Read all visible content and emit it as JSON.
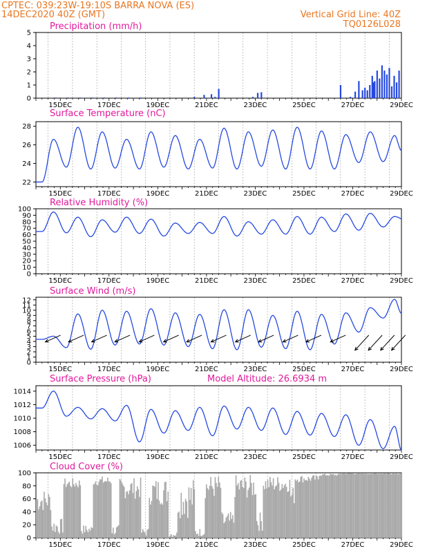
{
  "header": {
    "left_line1": "CPTEC:   039:23W-19:10S  BARRA NOVA (ES)",
    "left_line2": "14DEC2020 40Z (GMT)",
    "right_line1": "Vertical Grid Line: 40Z",
    "right_line2": "TQ0126L028"
  },
  "x_tick_labels": [
    "15DEC",
    "17DEC",
    "19DEC",
    "21DEC",
    "23DEC",
    "25DEC",
    "27DEC",
    "29DEC"
  ],
  "colors": {
    "header": "#e87722",
    "title": "#e0199c",
    "line": "#2448e0",
    "cloud": "#a9a9a9",
    "arrow": "#000000"
  },
  "chart_data": [
    {
      "type": "bar",
      "title": "Precipitation (mm/h)",
      "ylim": [
        0,
        5
      ],
      "yticks": [
        0,
        1,
        2,
        3,
        4,
        5
      ],
      "x": [
        0.8,
        1.3,
        1.8,
        2.3,
        2.8,
        3.3,
        3.8,
        4.3,
        6.5,
        6.9,
        7.2,
        7.35,
        7.5,
        8.9,
        9.1,
        9.25,
        12.5,
        12.9,
        13.1,
        13.25,
        13.4,
        13.5,
        13.6,
        13.7,
        13.8,
        13.85,
        13.9,
        14.0,
        14.1,
        14.2,
        14.3,
        14.4,
        14.5,
        14.6,
        14.7,
        14.8,
        14.9
      ],
      "values": [
        0.05,
        0.05,
        0.05,
        0.05,
        0.05,
        0.05,
        0.05,
        0.05,
        0.1,
        0.25,
        0.3,
        0.1,
        0.7,
        0.1,
        0.4,
        0.45,
        1.0,
        0.1,
        0.5,
        1.3,
        0.6,
        0.8,
        0.6,
        1.0,
        1.7,
        1.2,
        1.3,
        2.1,
        1.5,
        2.5,
        2.1,
        1.8,
        2.3,
        0.9,
        1.7,
        1.2,
        2.1
      ]
    },
    {
      "type": "line",
      "title": "Surface Temperature (nC)",
      "ylim": [
        21.5,
        28.5
      ],
      "yticks": [
        22,
        24,
        26,
        28
      ],
      "peaks": [
        26.6,
        27.9,
        27.4,
        26.6,
        27.4,
        27.0,
        26.6,
        27.8,
        27.4,
        27.6,
        27.9,
        27.5,
        27.1,
        27.4,
        27.0
      ],
      "troughs": [
        22.0,
        23.6,
        23.4,
        23.5,
        23.4,
        23.6,
        23.4,
        23.5,
        23.4,
        23.7,
        23.4,
        23.4,
        23.4,
        24.1,
        24.2
      ],
      "last": 25.4
    },
    {
      "type": "line",
      "title": "Relative Humidity (%)",
      "ylim": [
        0,
        100
      ],
      "yticks": [
        0,
        10,
        20,
        30,
        40,
        50,
        60,
        70,
        80,
        90,
        100
      ],
      "peaks": [
        95,
        87,
        83,
        87,
        84,
        78,
        79,
        88,
        80,
        83,
        88,
        87,
        92,
        93,
        88,
        84
      ],
      "troughs": [
        65,
        63,
        57,
        64,
        62,
        58,
        62,
        62,
        58,
        61,
        61,
        61,
        65,
        67,
        72,
        81
      ],
      "last": 84
    },
    {
      "type": "line",
      "title": "Surface Wind (m/s)",
      "ylim": [
        0,
        12.5
      ],
      "yticks": [
        0,
        1,
        2,
        3,
        4,
        5,
        6,
        7,
        8,
        9,
        10,
        11,
        12
      ],
      "peaks": [
        5.0,
        9.3,
        10.0,
        9.8,
        10.3,
        9.5,
        9.2,
        10.1,
        10.1,
        9.0,
        9.8,
        9.2,
        9.5,
        10.5,
        12.1
      ],
      "troughs": [
        4.4,
        2.8,
        2.5,
        3.3,
        3.5,
        3.3,
        3.0,
        2.6,
        2.4,
        2.9,
        2.6,
        2.4,
        3.5,
        5.8,
        8.5
      ],
      "last": 9.4,
      "wind_arrows_x": [
        0.5,
        1.45,
        2.4,
        3.35,
        4.35,
        5.35,
        6.3,
        7.3,
        8.3,
        9.25,
        10.25,
        11.2,
        12.2,
        13.15,
        13.7,
        14.2,
        14.65
      ]
    },
    {
      "type": "line",
      "title": "Surface Pressure (hPa)",
      "annotation": "Model Altitude: 26.6934 m",
      "ylim": [
        1005.3,
        1014.8
      ],
      "yticks": [
        1006,
        1008,
        1010,
        1012,
        1014
      ],
      "peaks": [
        1014.0,
        1011.6,
        1011.4,
        1011.9,
        1011.3,
        1011.1,
        1011.6,
        1011.8,
        1011.6,
        1011.5,
        1011.0,
        1010.7,
        1010.5,
        1009.8,
        1008.8
      ],
      "troughs": [
        1011.5,
        1010.3,
        1009.9,
        1009.6,
        1006.5,
        1007.8,
        1008.2,
        1007.4,
        1008.4,
        1008.2,
        1007.6,
        1007.5,
        1007.3,
        1006.0,
        1005.5
      ],
      "last": 1005.3
    },
    {
      "type": "area",
      "title": "Cloud Cover (%)",
      "ylim": [
        0,
        100
      ],
      "yticks": [
        0,
        20,
        40,
        60,
        80,
        100
      ],
      "bands": [
        [
          0.0,
          0.6,
          40,
          75
        ],
        [
          0.6,
          1.1,
          5,
          30
        ],
        [
          1.1,
          1.8,
          75,
          92
        ],
        [
          1.8,
          2.3,
          5,
          20
        ],
        [
          2.3,
          3.1,
          80,
          95
        ],
        [
          3.1,
          3.4,
          3,
          20
        ],
        [
          3.4,
          4.3,
          60,
          93
        ],
        [
          4.3,
          4.6,
          2,
          15
        ],
        [
          4.6,
          5.4,
          50,
          93
        ],
        [
          5.4,
          5.8,
          1,
          10
        ],
        [
          5.8,
          6.5,
          30,
          93
        ],
        [
          6.5,
          6.9,
          2,
          15
        ],
        [
          6.9,
          7.6,
          60,
          97
        ],
        [
          7.6,
          8.1,
          10,
          40
        ],
        [
          8.1,
          9.0,
          60,
          97
        ],
        [
          9.0,
          9.3,
          10,
          40
        ],
        [
          9.3,
          10.4,
          70,
          96
        ],
        [
          10.4,
          10.6,
          50,
          80
        ],
        [
          10.6,
          11.6,
          85,
          97
        ],
        [
          11.6,
          12.5,
          95,
          99
        ],
        [
          12.5,
          15.0,
          98,
          100
        ]
      ]
    }
  ]
}
